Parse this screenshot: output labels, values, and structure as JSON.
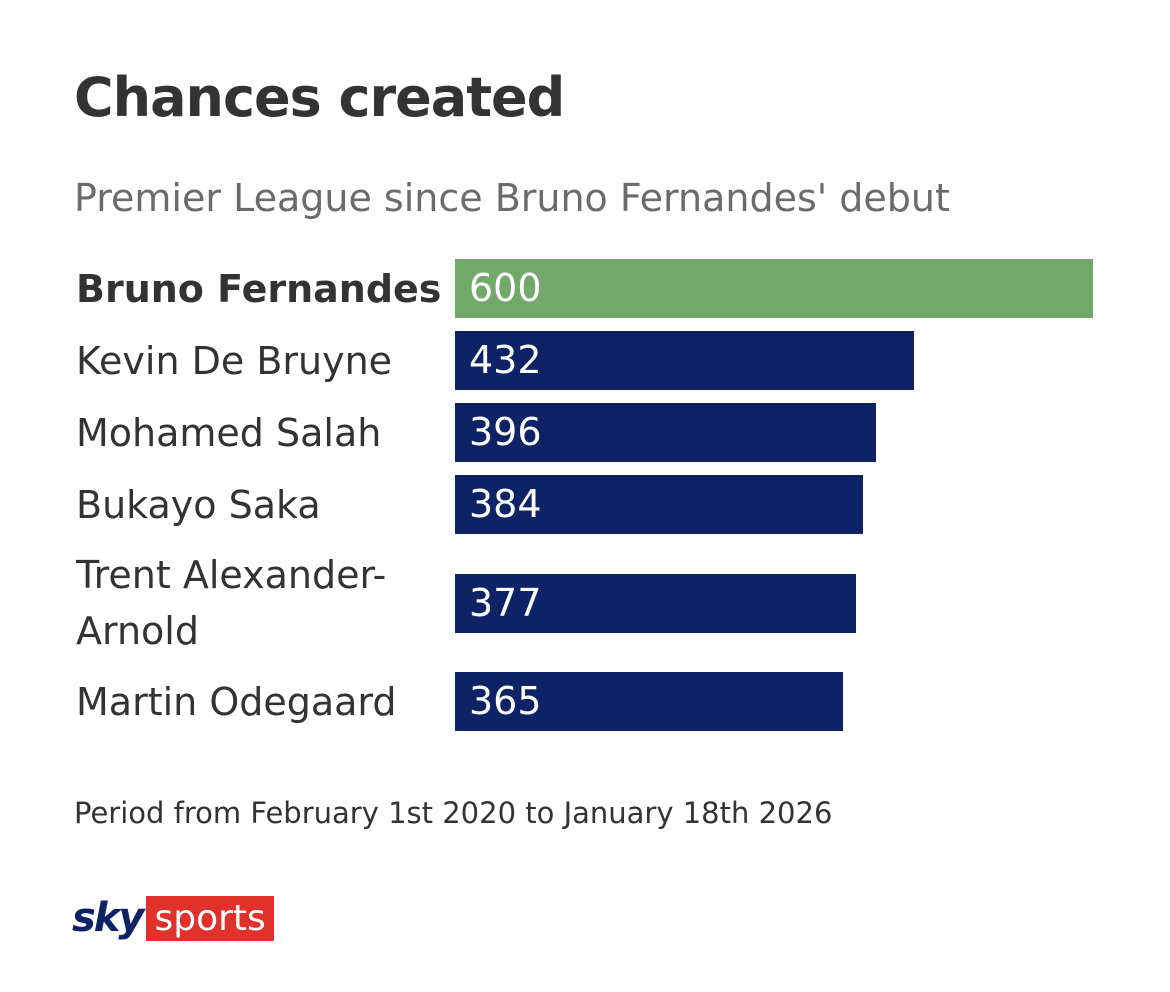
{
  "chart_data": {
    "type": "bar",
    "orientation": "horizontal",
    "title": "Chances created",
    "subtitle": "Premier League since Bruno Fernandes' debut",
    "categories": [
      "Bruno Fernandes",
      "Kevin De Bruyne",
      "Mohamed Salah",
      "Bukayo Saka",
      "Trent Alexander-Arnold",
      "Martin Odegaard"
    ],
    "values": [
      600,
      432,
      396,
      384,
      377,
      365
    ],
    "colors": [
      "#72a96b",
      "#0d2366",
      "#0d2366",
      "#0d2366",
      "#0d2366",
      "#0d2366"
    ],
    "footnote": "Period from February 1st 2020 to January 18th 2026"
  },
  "logo": {
    "brand": "sky",
    "product": "sports"
  }
}
